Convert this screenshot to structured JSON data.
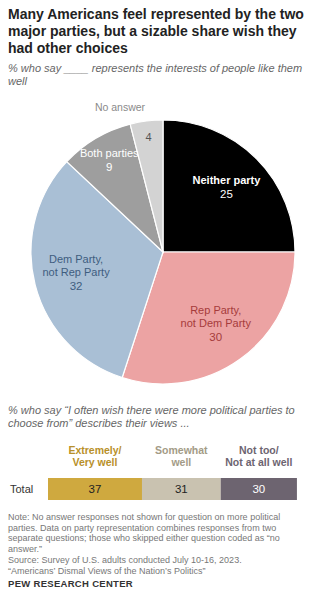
{
  "chart_data": [
    {
      "type": "pie",
      "title": "Many Americans feel represented by the two major parties, but a sizable share wish they had other choices",
      "subtitle": "% who say ____ represents the interests of people like them well",
      "categories": [
        "Neither party",
        "Rep Party, not Dem Party",
        "Dem Party, not Rep Party",
        "Both parties",
        "No answer"
      ],
      "values": [
        25,
        30,
        32,
        9,
        4
      ],
      "colors": [
        "#000000",
        "#eca3a3",
        "#a9bfd5",
        "#9e9e9e",
        "#d3d3d3"
      ],
      "data_labels": true
    },
    {
      "type": "bar",
      "subtitle": "% who say “I often wish there were more political parties to choose from” describes their views ...",
      "orientation": "horizontal",
      "stacked": true,
      "data_labels": true,
      "tick_labels": "y",
      "categories": [
        "Total"
      ],
      "xlim": [
        0,
        100
      ],
      "series": [
        {
          "name": "Extremely/ Very well",
          "color": "#cfa93f",
          "values": [
            37
          ]
        },
        {
          "name": "Somewhat well",
          "color": "#c9c2b0",
          "values": [
            31
          ]
        },
        {
          "name": "Not too/ Not at all well",
          "color": "#6d6470",
          "values": [
            30
          ]
        }
      ]
    }
  ],
  "note": "Note: No answer responses not shown for question on more political parties. Data on party representation combines responses from two separate questions; those who skipped either question coded as “no answer.”",
  "source": [
    "Source: Survey of U.S. adults conducted July 10-16, 2023.",
    "“Americans’ Dismal Views of the Nation’s Politics”"
  ],
  "credit": "PEW RESEARCH CENTER"
}
